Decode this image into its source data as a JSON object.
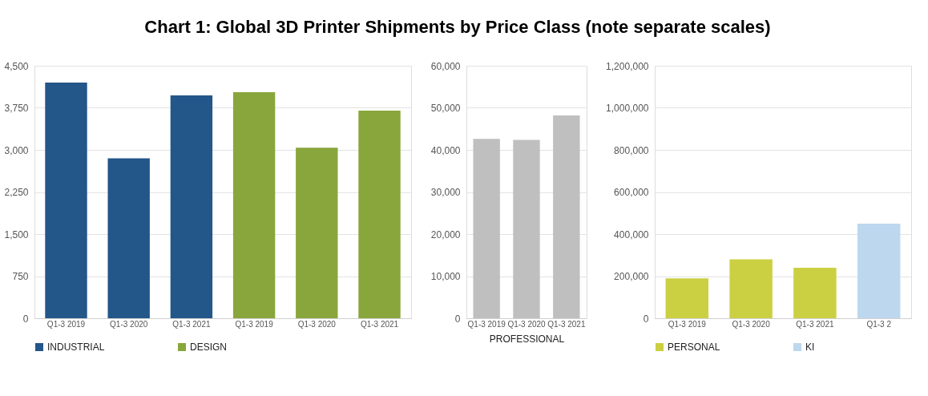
{
  "chart_data": [
    {
      "type": "bar",
      "title": "Chart 1: Global 3D Printer Shipments by Price Class (note separate scales)",
      "categories": [
        "Q1-3 2019",
        "Q1-3 2020",
        "Q1-3 2021",
        "Q1-3 2019",
        "Q1-3 2020",
        "Q1-3 2021"
      ],
      "series": [
        {
          "name": "INDUSTRIAL",
          "color": "#235689",
          "values": [
            4200,
            2850,
            3970,
            null,
            null,
            null
          ]
        },
        {
          "name": "DESIGN",
          "color": "#89a63c",
          "values": [
            null,
            null,
            null,
            4030,
            3040,
            3700
          ]
        }
      ],
      "ylim": [
        0,
        4500
      ],
      "yticks": [
        {
          "value": 0,
          "label": "0"
        },
        {
          "value": 750,
          "label": "750"
        },
        {
          "value": 1500,
          "label": "1,500"
        },
        {
          "value": 2250,
          "label": "2,250"
        },
        {
          "value": 3000,
          "label": "3,000"
        },
        {
          "value": 3750,
          "label": "3,750"
        },
        {
          "value": 4500,
          "label": "4,500"
        }
      ],
      "grid": "y",
      "legend": "bottom"
    },
    {
      "type": "bar",
      "categories": [
        "Q1-3 2019",
        "Q1-3 2020",
        "Q1-3 2021"
      ],
      "xlabel": "PROFESSIONAL",
      "series": [
        {
          "color": "#bfbfbf",
          "values": [
            42600,
            42400,
            48200
          ]
        }
      ],
      "ylim": [
        0,
        60000
      ],
      "yticks": [
        {
          "value": 0,
          "label": "0"
        },
        {
          "value": 10000,
          "label": "10,000"
        },
        {
          "value": 20000,
          "label": "20,000"
        },
        {
          "value": 30000,
          "label": "30,000"
        },
        {
          "value": 40000,
          "label": "40,000"
        },
        {
          "value": 50000,
          "label": "50,000"
        },
        {
          "value": 60000,
          "label": "60,000"
        }
      ],
      "grid": "y"
    },
    {
      "type": "bar",
      "categories": [
        "Q1-3 2019",
        "Q1-3 2020",
        "Q1-3 2021",
        "Q1-3 2"
      ],
      "series": [
        {
          "name": "PERSONAL",
          "color": "#cbd043",
          "values": [
            190000,
            280000,
            240000,
            null
          ]
        },
        {
          "name": "KI",
          "color": "#bdd7ee",
          "values": [
            null,
            null,
            null,
            450000
          ]
        }
      ],
      "ylim": [
        0,
        1200000
      ],
      "yticks": [
        {
          "value": 0,
          "label": "0"
        },
        {
          "value": 200000,
          "label": "200,000"
        },
        {
          "value": 400000,
          "label": "400,000"
        },
        {
          "value": 600000,
          "label": "600,000"
        },
        {
          "value": 800000,
          "label": "800,000"
        },
        {
          "value": 1000000,
          "label": "1,000,000"
        },
        {
          "value": 1200000,
          "label": "1,200,000"
        }
      ],
      "grid": "y",
      "legend": "bottom"
    }
  ]
}
